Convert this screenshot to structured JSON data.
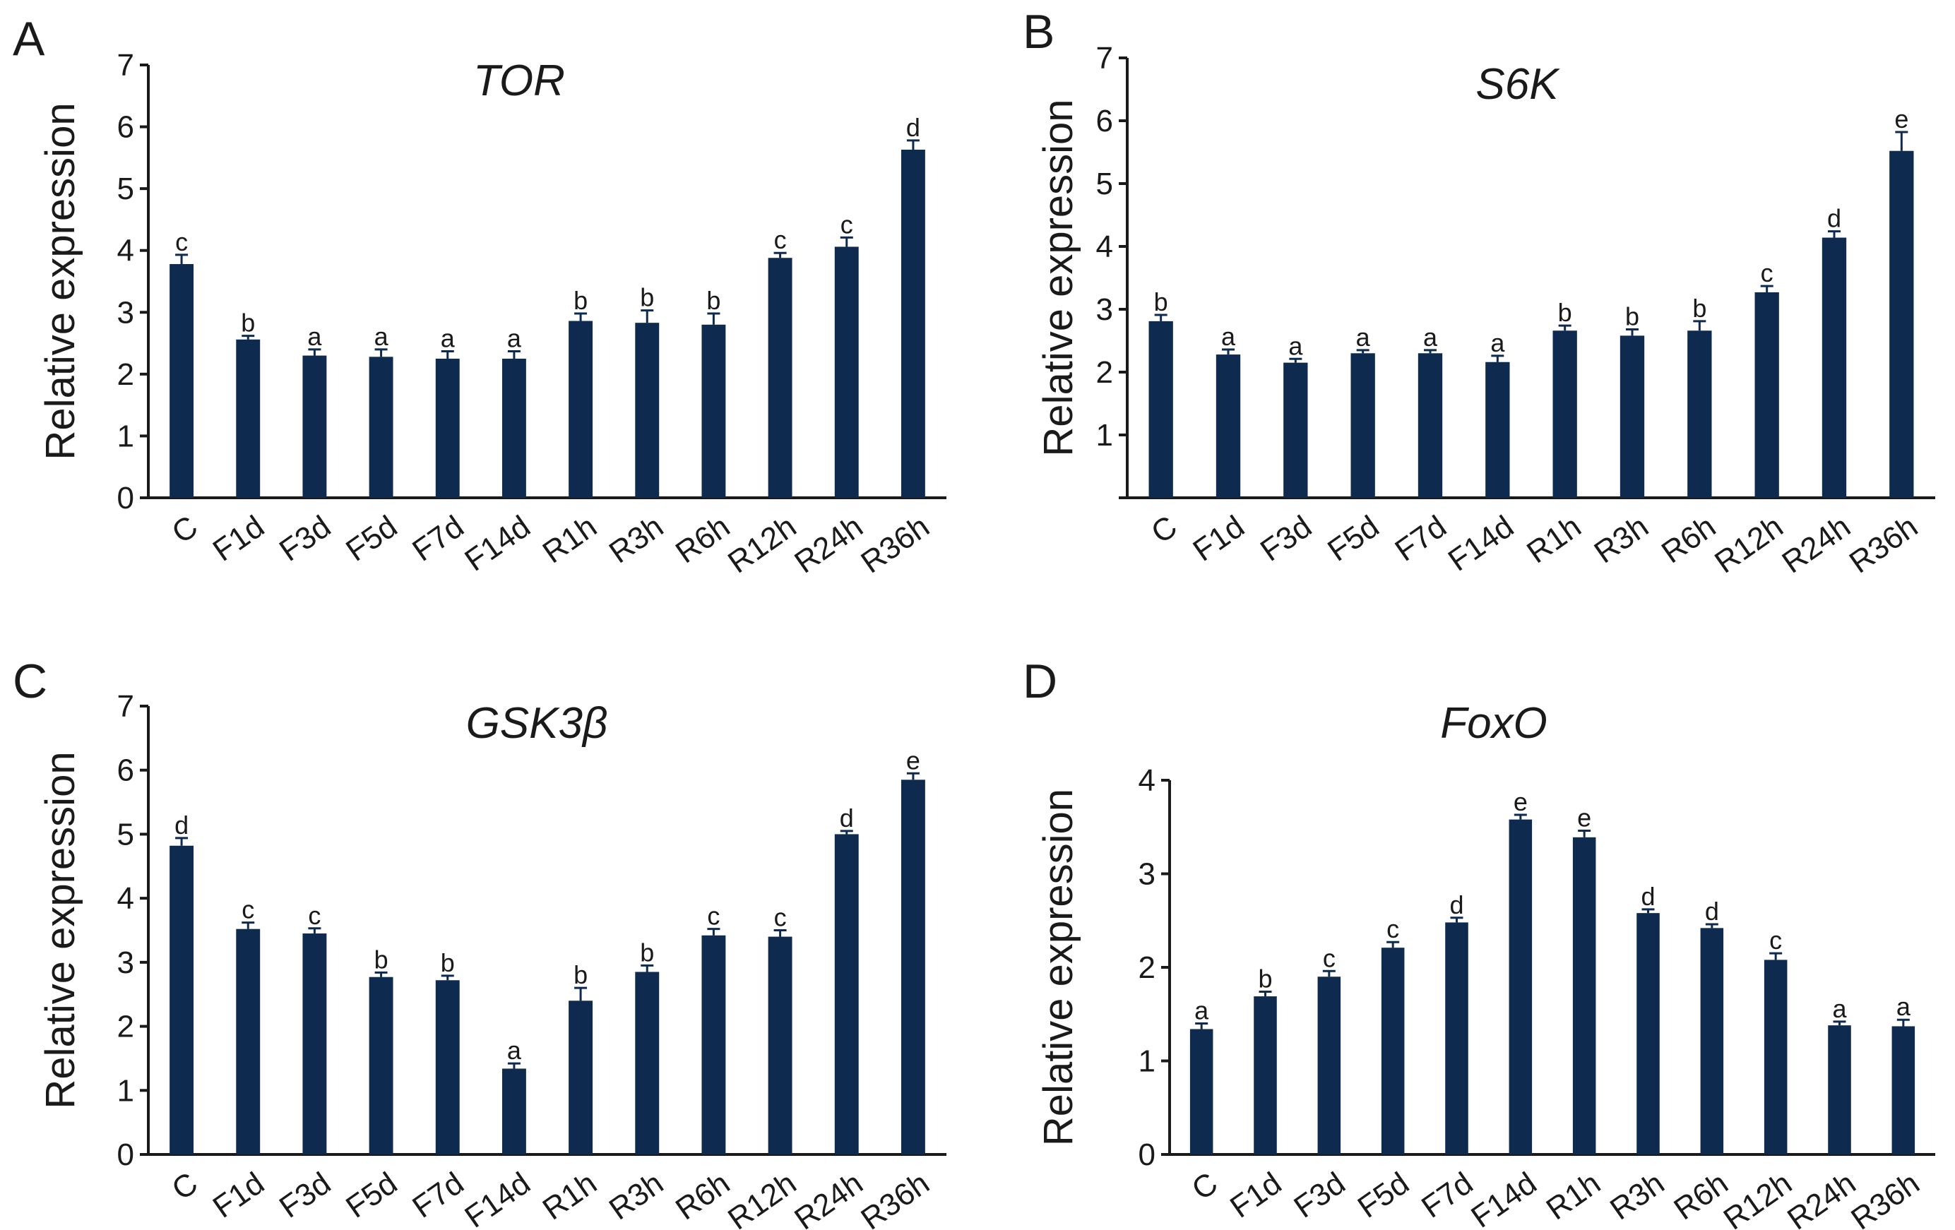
{
  "colors": {
    "bar": "#0e2a4f",
    "axis": "#1a1a1a",
    "background": "#ffffff"
  },
  "chart_data": [
    {
      "panel": "A",
      "type": "bar",
      "title": "TOR",
      "ylabel": "Relative expression",
      "xlabel": "",
      "ylim": [
        0,
        7
      ],
      "yticks": [
        "0",
        "1",
        "2",
        "3",
        "4",
        "5",
        "6",
        "7"
      ],
      "categories": [
        "C",
        "F1d",
        "F3d",
        "F5d",
        "F7d",
        "F14d",
        "R1h",
        "R3h",
        "R6h",
        "R12h",
        "R24h",
        "R36h"
      ],
      "values": [
        3.78,
        2.56,
        2.3,
        2.28,
        2.25,
        2.25,
        2.86,
        2.83,
        2.8,
        3.88,
        4.06,
        5.63
      ],
      "errors": [
        0.15,
        0.06,
        0.1,
        0.12,
        0.12,
        0.12,
        0.12,
        0.2,
        0.18,
        0.08,
        0.15,
        0.15
      ],
      "letters": [
        "c",
        "b",
        "a",
        "a",
        "a",
        "a",
        "b",
        "b",
        "b",
        "c",
        "c",
        "d"
      ]
    },
    {
      "panel": "B",
      "type": "bar",
      "title": "S6K",
      "ylabel": "Relative expression",
      "xlabel": "",
      "ylim": [
        0,
        7
      ],
      "yticks": [
        "",
        "1",
        "2",
        "3",
        "4",
        "5",
        "6",
        "7"
      ],
      "categories": [
        "C",
        "F1d",
        "F3d",
        "F5d",
        "F7d",
        "F14d",
        "R1h",
        "R3h",
        "R6h",
        "R12h",
        "R24h",
        "R36h"
      ],
      "values": [
        2.81,
        2.28,
        2.15,
        2.3,
        2.3,
        2.16,
        2.66,
        2.58,
        2.66,
        3.27,
        4.14,
        5.52
      ],
      "errors": [
        0.1,
        0.08,
        0.06,
        0.05,
        0.05,
        0.1,
        0.08,
        0.1,
        0.15,
        0.1,
        0.1,
        0.3
      ],
      "letters": [
        "b",
        "a",
        "a",
        "a",
        "a",
        "a",
        "b",
        "b",
        "b",
        "c",
        "d",
        "e"
      ]
    },
    {
      "panel": "C",
      "type": "bar",
      "title": "GSK3β",
      "ylabel": "Relative expression",
      "xlabel": "",
      "ylim": [
        0,
        7
      ],
      "yticks": [
        "0",
        "1",
        "2",
        "3",
        "4",
        "5",
        "6",
        "7"
      ],
      "categories": [
        "C",
        "F1d",
        "F3d",
        "F5d",
        "F7d",
        "F14d",
        "R1h",
        "R3h",
        "R6h",
        "R12h",
        "R24h",
        "R36h"
      ],
      "values": [
        4.82,
        3.52,
        3.45,
        2.77,
        2.72,
        1.34,
        2.4,
        2.85,
        3.42,
        3.4,
        5.0,
        5.85
      ],
      "errors": [
        0.12,
        0.1,
        0.08,
        0.07,
        0.07,
        0.08,
        0.2,
        0.1,
        0.1,
        0.1,
        0.05,
        0.1
      ],
      "letters": [
        "d",
        "c",
        "c",
        "b",
        "b",
        "a",
        "b",
        "b",
        "c",
        "c",
        "d",
        "e"
      ]
    },
    {
      "panel": "D",
      "type": "bar",
      "title": "FoxO",
      "ylabel": "Relative expression",
      "xlabel": "",
      "ylim": [
        0,
        4
      ],
      "yticks": [
        "0",
        "1",
        "2",
        "3",
        "4"
      ],
      "categories": [
        "C",
        "F1d",
        "F3d",
        "F5d",
        "F7d",
        "F14d",
        "R1h",
        "R3h",
        "R6h",
        "R12h",
        "R24h",
        "R36h"
      ],
      "values": [
        1.34,
        1.69,
        1.9,
        2.21,
        2.48,
        3.58,
        3.39,
        2.58,
        2.42,
        2.08,
        1.38,
        1.37
      ],
      "errors": [
        0.06,
        0.05,
        0.06,
        0.06,
        0.05,
        0.05,
        0.07,
        0.04,
        0.04,
        0.07,
        0.04,
        0.07
      ],
      "letters": [
        "a",
        "b",
        "c",
        "c",
        "d",
        "e",
        "e",
        "d",
        "d",
        "c",
        "a",
        "a"
      ]
    }
  ]
}
